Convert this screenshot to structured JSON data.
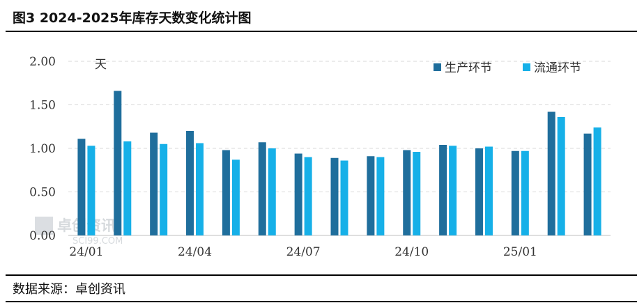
{
  "header": {
    "title": "图3 2024-2025年库存天数变化统计图"
  },
  "footer": {
    "source": "数据来源：卓创资讯"
  },
  "watermark": {
    "name": "卓创资讯",
    "site": "SCI99.COM"
  },
  "colors": {
    "production": "#1f6e9c",
    "circulation": "#16b0e8",
    "grid": "#d9d9d9",
    "axis": "#bfbfbf"
  },
  "chart_data": {
    "type": "bar",
    "unit_label": "天",
    "categories": [
      "24/01",
      "24/02",
      "24/03",
      "24/04",
      "24/05",
      "24/06",
      "24/07",
      "24/08",
      "24/09",
      "24/10",
      "24/11",
      "24/12",
      "25/01",
      "25/02",
      "25/03"
    ],
    "x_tick_labels": [
      "24/01",
      "24/04",
      "24/07",
      "24/10",
      "25/01"
    ],
    "y_tick_labels": [
      "0.00",
      "0.50",
      "1.00",
      "1.50",
      "2.00"
    ],
    "ylim": [
      0,
      2
    ],
    "grid": true,
    "legend_position": "top-right",
    "series": [
      {
        "name": "生产环节",
        "values": [
          1.11,
          1.66,
          1.18,
          1.2,
          0.98,
          1.07,
          0.94,
          0.89,
          0.91,
          0.98,
          1.04,
          1.0,
          0.97,
          1.42,
          1.17
        ]
      },
      {
        "name": "流通环节",
        "values": [
          1.03,
          1.08,
          1.05,
          1.06,
          0.87,
          1.0,
          0.9,
          0.86,
          0.9,
          0.96,
          1.03,
          1.02,
          0.97,
          1.36,
          1.24
        ]
      }
    ]
  }
}
